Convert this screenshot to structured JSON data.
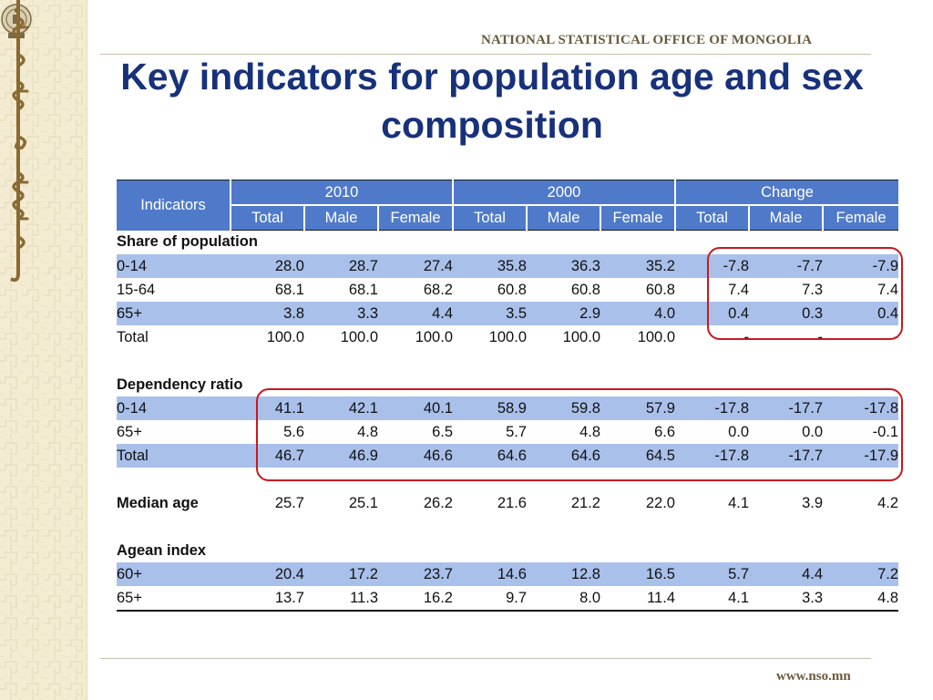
{
  "header": {
    "org": "NATIONAL STATISTICAL OFFICE OF MONGOLIA"
  },
  "title": "Key indicators for population age and sex composition",
  "footer": {
    "url": "www.nso.mn"
  },
  "sidebar": {
    "logo_icon": "nso-emblem-icon",
    "script_icon": "mongolian-script-icon"
  },
  "table": {
    "corner_label": "Indicators",
    "groups": [
      "2010",
      "2000",
      "Change"
    ],
    "subheaders": [
      "Total",
      "Male",
      "Female",
      "Total",
      "Male",
      "Female",
      "Total",
      "Male",
      "Female"
    ],
    "sections": [
      {
        "title": "Share of population",
        "rows": [
          {
            "label": "0-14",
            "values": [
              "28.0",
              "28.7",
              "27.4",
              "35.8",
              "36.3",
              "35.2",
              "-7.8",
              "-7.7",
              "-7.9"
            ]
          },
          {
            "label": "15-64",
            "values": [
              "68.1",
              "68.1",
              "68.2",
              "60.8",
              "60.8",
              "60.8",
              "7.4",
              "7.3",
              "7.4"
            ]
          },
          {
            "label": "65+",
            "values": [
              "3.8",
              "3.3",
              "4.4",
              "3.5",
              "2.9",
              "4.0",
              "0.4",
              "0.3",
              "0.4"
            ]
          },
          {
            "label": "Total",
            "values": [
              "100.0",
              "100.0",
              "100.0",
              "100.0",
              "100.0",
              "100.0",
              "-",
              "-",
              "-"
            ]
          }
        ]
      },
      {
        "title": "Dependency ratio",
        "rows": [
          {
            "label": "0-14",
            "values": [
              "41.1",
              "42.1",
              "40.1",
              "58.9",
              "59.8",
              "57.9",
              "-17.8",
              "-17.7",
              "-17.8"
            ]
          },
          {
            "label": "65+",
            "values": [
              "5.6",
              "4.8",
              "6.5",
              "5.7",
              "4.8",
              "6.6",
              "0.0",
              "0.0",
              "-0.1"
            ]
          },
          {
            "label": "Total",
            "values": [
              "46.7",
              "46.9",
              "46.6",
              "64.6",
              "64.6",
              "64.5",
              "-17.8",
              "-17.7",
              "-17.9"
            ]
          }
        ]
      },
      {
        "title": "Median age",
        "values": [
          "25.7",
          "25.1",
          "26.2",
          "21.6",
          "21.2",
          "22.0",
          "4.1",
          "3.9",
          "4.2"
        ]
      },
      {
        "title": "Agean index",
        "rows": [
          {
            "label": "60+",
            "values": [
              "20.4",
              "17.2",
              "23.7",
              "14.6",
              "12.8",
              "16.5",
              "5.7",
              "4.4",
              "7.2"
            ]
          },
          {
            "label": "65+",
            "values": [
              "13.7",
              "11.3",
              "16.2",
              "9.7",
              "8.0",
              "11.4",
              "4.1",
              "3.3",
              "4.8"
            ]
          }
        ]
      }
    ]
  },
  "highlight_color": "#c8191f"
}
